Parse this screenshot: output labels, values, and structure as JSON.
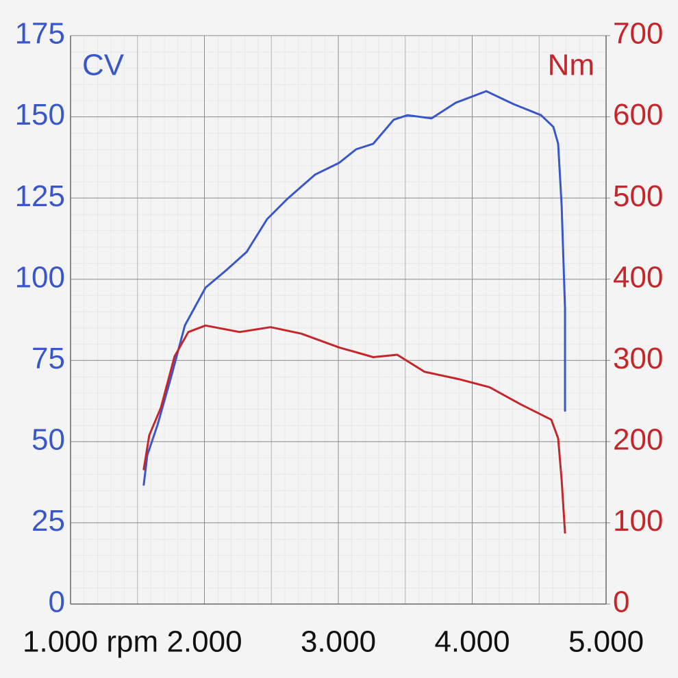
{
  "chart_data": {
    "type": "line",
    "x": [],
    "series": [
      {
        "name": "CV",
        "color": "#3a57c9",
        "x": [
          1547,
          1573,
          1650,
          1752,
          1854,
          2008,
          2161,
          2315,
          2468,
          2621,
          2826,
          3005,
          3133,
          3261,
          3414,
          3517,
          3696,
          3875,
          4105,
          4310,
          4514,
          4606,
          4642,
          4668,
          4693,
          4693
        ],
        "values": [
          36.7,
          45.8,
          55.2,
          70,
          85.8,
          97.4,
          102.7,
          108.4,
          118.5,
          124.8,
          132.2,
          135.8,
          140,
          141.7,
          149.1,
          150.5,
          149.5,
          154.3,
          157.9,
          153.9,
          150.5,
          146.9,
          141.7,
          122.7,
          91.1,
          59.5
        ]
      },
      {
        "name": "Nm",
        "color": "#c4262b",
        "axis": "y2",
        "x": [
          1547,
          1588,
          1675,
          1777,
          1880,
          2008,
          2263,
          2494,
          2724,
          3005,
          3261,
          3440,
          3644,
          3900,
          4130,
          4361,
          4591,
          4642,
          4668,
          4693
        ],
        "values": [
          166,
          208,
          242,
          305,
          335,
          343,
          335,
          341,
          333,
          316,
          304,
          307,
          286,
          277,
          267,
          246,
          227,
          204,
          153,
          88
        ]
      }
    ],
    "xlim": [
      1000,
      5000
    ],
    "xticks": [
      {
        "value": 1000,
        "label": "1.000 rpm"
      },
      {
        "value": 2000,
        "label": "2.000"
      },
      {
        "value": 3000,
        "label": "3.000"
      },
      {
        "value": 4000,
        "label": "4.000"
      },
      {
        "value": 5000,
        "label": "5.000"
      }
    ],
    "ylim": [
      0,
      175
    ],
    "yticks": [
      0,
      25,
      50,
      75,
      100,
      125,
      150,
      175
    ],
    "y2lim": [
      0,
      700
    ],
    "y2ticks": [
      0,
      100,
      200,
      300,
      400,
      500,
      600,
      700
    ],
    "grid": true
  }
}
